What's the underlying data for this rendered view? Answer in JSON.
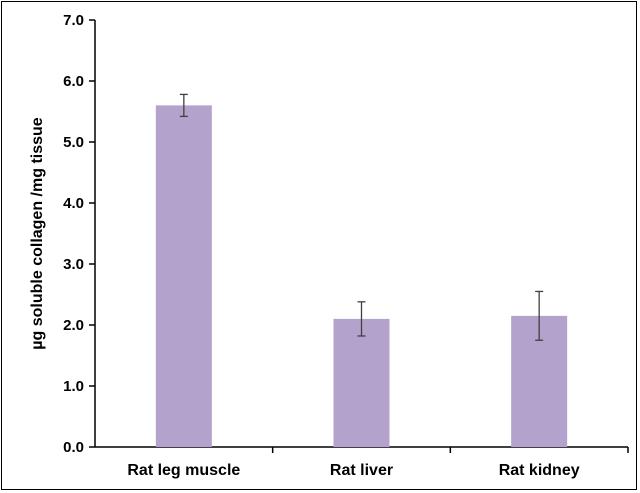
{
  "chart_data": {
    "type": "bar",
    "title": "",
    "xlabel": "",
    "ylabel": "µg soluble collagen /mg tissue",
    "categories": [
      "Rat leg muscle",
      "Rat liver",
      "Rat kidney"
    ],
    "values": [
      5.6,
      2.1,
      2.15
    ],
    "error_bars": [
      0.18,
      0.28,
      0.4
    ],
    "ylim": [
      0,
      7
    ],
    "yticks": [
      "0.0",
      "1.0",
      "2.0",
      "3.0",
      "4.0",
      "5.0",
      "6.0",
      "7.0"
    ],
    "grid": false,
    "legend": "none",
    "bar_color": "#b3a2cc",
    "error_color": "#404040"
  }
}
